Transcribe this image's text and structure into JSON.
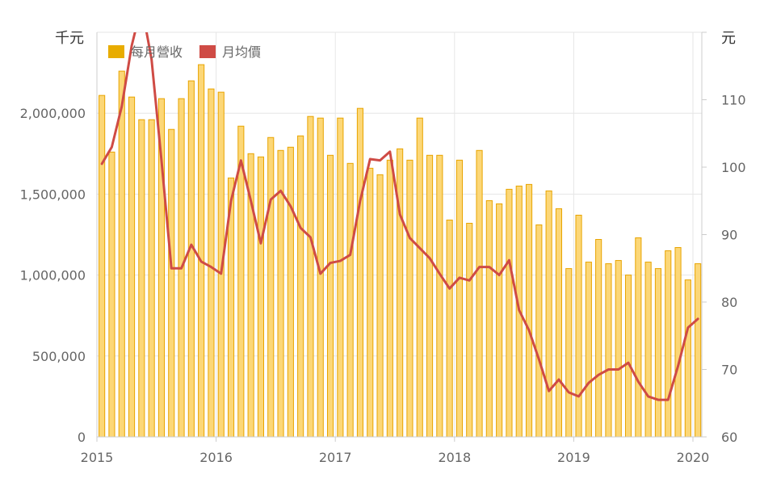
{
  "chart_data": {
    "type": "bar+line",
    "title": "",
    "units": {
      "left": "千元",
      "right": "元"
    },
    "colors": {
      "revenue": "#fcd777",
      "revenue_border": "#e8a400",
      "price": "#cf4b45"
    },
    "legend": [
      {
        "name": "每月營收",
        "color": "#e8ac00"
      },
      {
        "name": "月均價",
        "color": "#cf4b45"
      }
    ],
    "legend_position": "top-left",
    "grid": true,
    "x_ticks": [
      "2015",
      "2016",
      "2017",
      "2018",
      "2019",
      "2020"
    ],
    "x_start": "2015-01",
    "y_left": {
      "min": 0,
      "max": 2500000,
      "ticks": [
        "0",
        "500,000",
        "1,000,000",
        "1,500,000",
        "2,000,000"
      ]
    },
    "y_right": {
      "min": 60,
      "max": 120,
      "ticks": [
        "60",
        "70",
        "80",
        "90",
        "100",
        "110"
      ]
    },
    "series": [
      {
        "name": "每月營收",
        "type": "bar",
        "axis": "left",
        "values": [
          2110000,
          1760000,
          2260000,
          2100000,
          1960000,
          1960000,
          2090000,
          1900000,
          2090000,
          2200000,
          2300000,
          2150000,
          2130000,
          1600000,
          1920000,
          1750000,
          1730000,
          1850000,
          1770000,
          1790000,
          1860000,
          1980000,
          1970000,
          1740000,
          1970000,
          1690000,
          2030000,
          1660000,
          1620000,
          1710000,
          1780000,
          1710000,
          1970000,
          1740000,
          1740000,
          1340000,
          1710000,
          1320000,
          1770000,
          1460000,
          1440000,
          1530000,
          1550000,
          1560000,
          1310000,
          1520000,
          1410000,
          1040000,
          1370000,
          1080000,
          1220000,
          1070000,
          1090000,
          1000000,
          1230000,
          1080000,
          1040000,
          1150000,
          1170000,
          970000,
          1070000
        ]
      },
      {
        "name": "月均價",
        "type": "line",
        "axis": "right",
        "values": [
          100.5,
          103,
          109,
          118,
          124,
          116,
          101,
          85,
          85,
          88.5,
          86,
          85.2,
          84.2,
          95,
          101,
          95,
          88.7,
          95.2,
          96.5,
          94.2,
          91,
          89.6,
          84.2,
          85.8,
          86.1,
          87,
          95,
          101.2,
          101,
          102.3,
          93,
          89.5,
          88,
          86.5,
          84.2,
          82,
          83.6,
          83.2,
          85.2,
          85.2,
          84,
          86.2,
          78.8,
          75.8,
          71.5,
          66.8,
          68.5,
          66.6,
          66,
          68,
          69.2,
          70,
          70,
          71,
          68.2,
          66,
          65.5,
          65.5,
          70.5,
          76.2,
          77.5
        ]
      }
    ]
  }
}
